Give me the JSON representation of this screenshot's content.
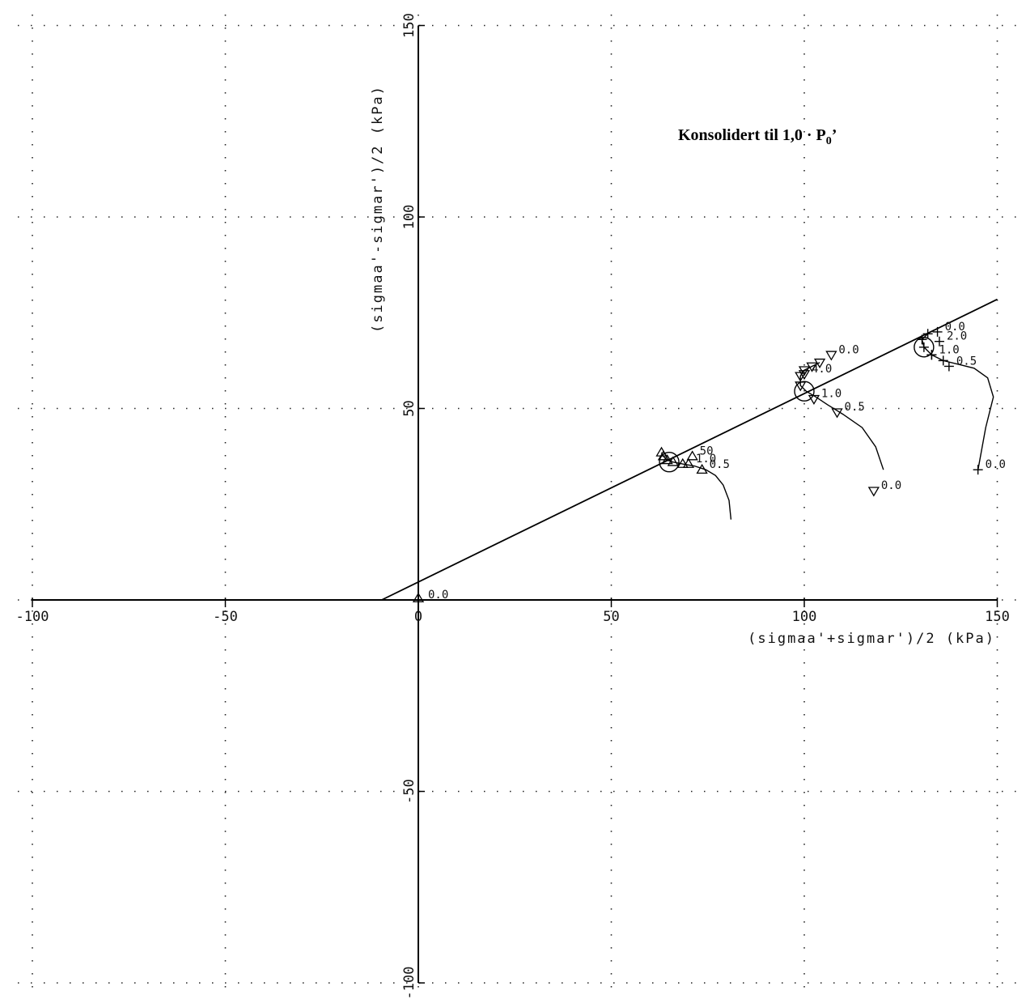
{
  "chart_data": {
    "type": "line",
    "title": "",
    "annotation": {
      "text": "Konsolidert til 1,0  · P",
      "sub": "0",
      "suffix": "’"
    },
    "xlabel": "(sigmaa'+sigmar')/2 (kPa)",
    "ylabel": "(sigmaa'-sigmar')/2 (kPa)",
    "xlim": [
      -100,
      150
    ],
    "ylim": [
      -100,
      150
    ],
    "xticks": [
      -100,
      -50,
      0,
      50,
      100,
      150
    ],
    "yticks": [
      -100,
      -50,
      0,
      50,
      100,
      150
    ],
    "xtick_labels": [
      "-100",
      "-50",
      "0",
      "50",
      "100",
      "150"
    ],
    "ytick_labels": [
      "-100",
      "-50",
      "",
      "50",
      "100",
      "150"
    ],
    "grid": true,
    "failure_line": {
      "name": "",
      "points": [
        [
          -9.5,
          0
        ],
        [
          150,
          78.5
        ]
      ]
    },
    "series": [
      {
        "name": "",
        "marker": "triangle-up",
        "values": [
          [
            81,
            21
          ],
          [
            80.5,
            26
          ],
          [
            79,
            30
          ],
          [
            77,
            32.5
          ],
          [
            74.5,
            34
          ],
          [
            71.5,
            35
          ],
          [
            68.5,
            35.5
          ],
          [
            66,
            36
          ],
          [
            64.5,
            36.5
          ],
          [
            63.5,
            37.5
          ],
          [
            63,
            38.5
          ]
        ],
        "labeled_points": [
          {
            "x": 73.5,
            "y": 34,
            "label": "0.5"
          },
          {
            "x": 70,
            "y": 35.5,
            "label": "1.0"
          },
          {
            "x": 71,
            "y": 37.5,
            "label": "50"
          }
        ],
        "circle": [
          65,
          36
        ]
      },
      {
        "name": "",
        "marker": "triangle-down",
        "values": [
          [
            120.5,
            34
          ],
          [
            118.5,
            40
          ],
          [
            115,
            45
          ],
          [
            110,
            48.5
          ],
          [
            106,
            51
          ],
          [
            103,
            53
          ],
          [
            100.5,
            54.5
          ],
          [
            99,
            56
          ],
          [
            99,
            58.5
          ],
          [
            100,
            60
          ],
          [
            102,
            61
          ],
          [
            104,
            62
          ]
        ],
        "labeled_points": [
          {
            "x": 118,
            "y": 28.5,
            "label": "0.0"
          },
          {
            "x": 108.5,
            "y": 49,
            "label": "0.5"
          },
          {
            "x": 102.5,
            "y": 52.5,
            "label": "1.0"
          },
          {
            "x": 100,
            "y": 59,
            "label": "4.0"
          },
          {
            "x": 107,
            "y": 64,
            "label": "0.0"
          }
        ],
        "circle": [
          100,
          54.5
        ]
      },
      {
        "name": "",
        "marker": "plus",
        "values": [
          [
            145,
            34
          ],
          [
            147,
            45
          ],
          [
            149,
            53
          ],
          [
            147.5,
            58
          ],
          [
            144,
            60.5
          ],
          [
            140,
            61.5
          ],
          [
            136,
            62.5
          ],
          [
            133,
            64
          ],
          [
            131,
            66
          ],
          [
            130.5,
            68
          ],
          [
            132,
            69.5
          ]
        ],
        "labeled_points": [
          {
            "x": 145,
            "y": 34,
            "label": "0.0"
          },
          {
            "x": 137.5,
            "y": 61,
            "label": "0.5"
          },
          {
            "x": 133,
            "y": 64,
            "label": "1.0"
          },
          {
            "x": 135,
            "y": 67.5,
            "label": "2.0"
          },
          {
            "x": 134.5,
            "y": 70,
            "label": "0.0"
          }
        ],
        "circle": [
          131,
          66
        ]
      }
    ],
    "origin_marker": {
      "x": 0,
      "y": 0,
      "label": "0.0"
    }
  }
}
